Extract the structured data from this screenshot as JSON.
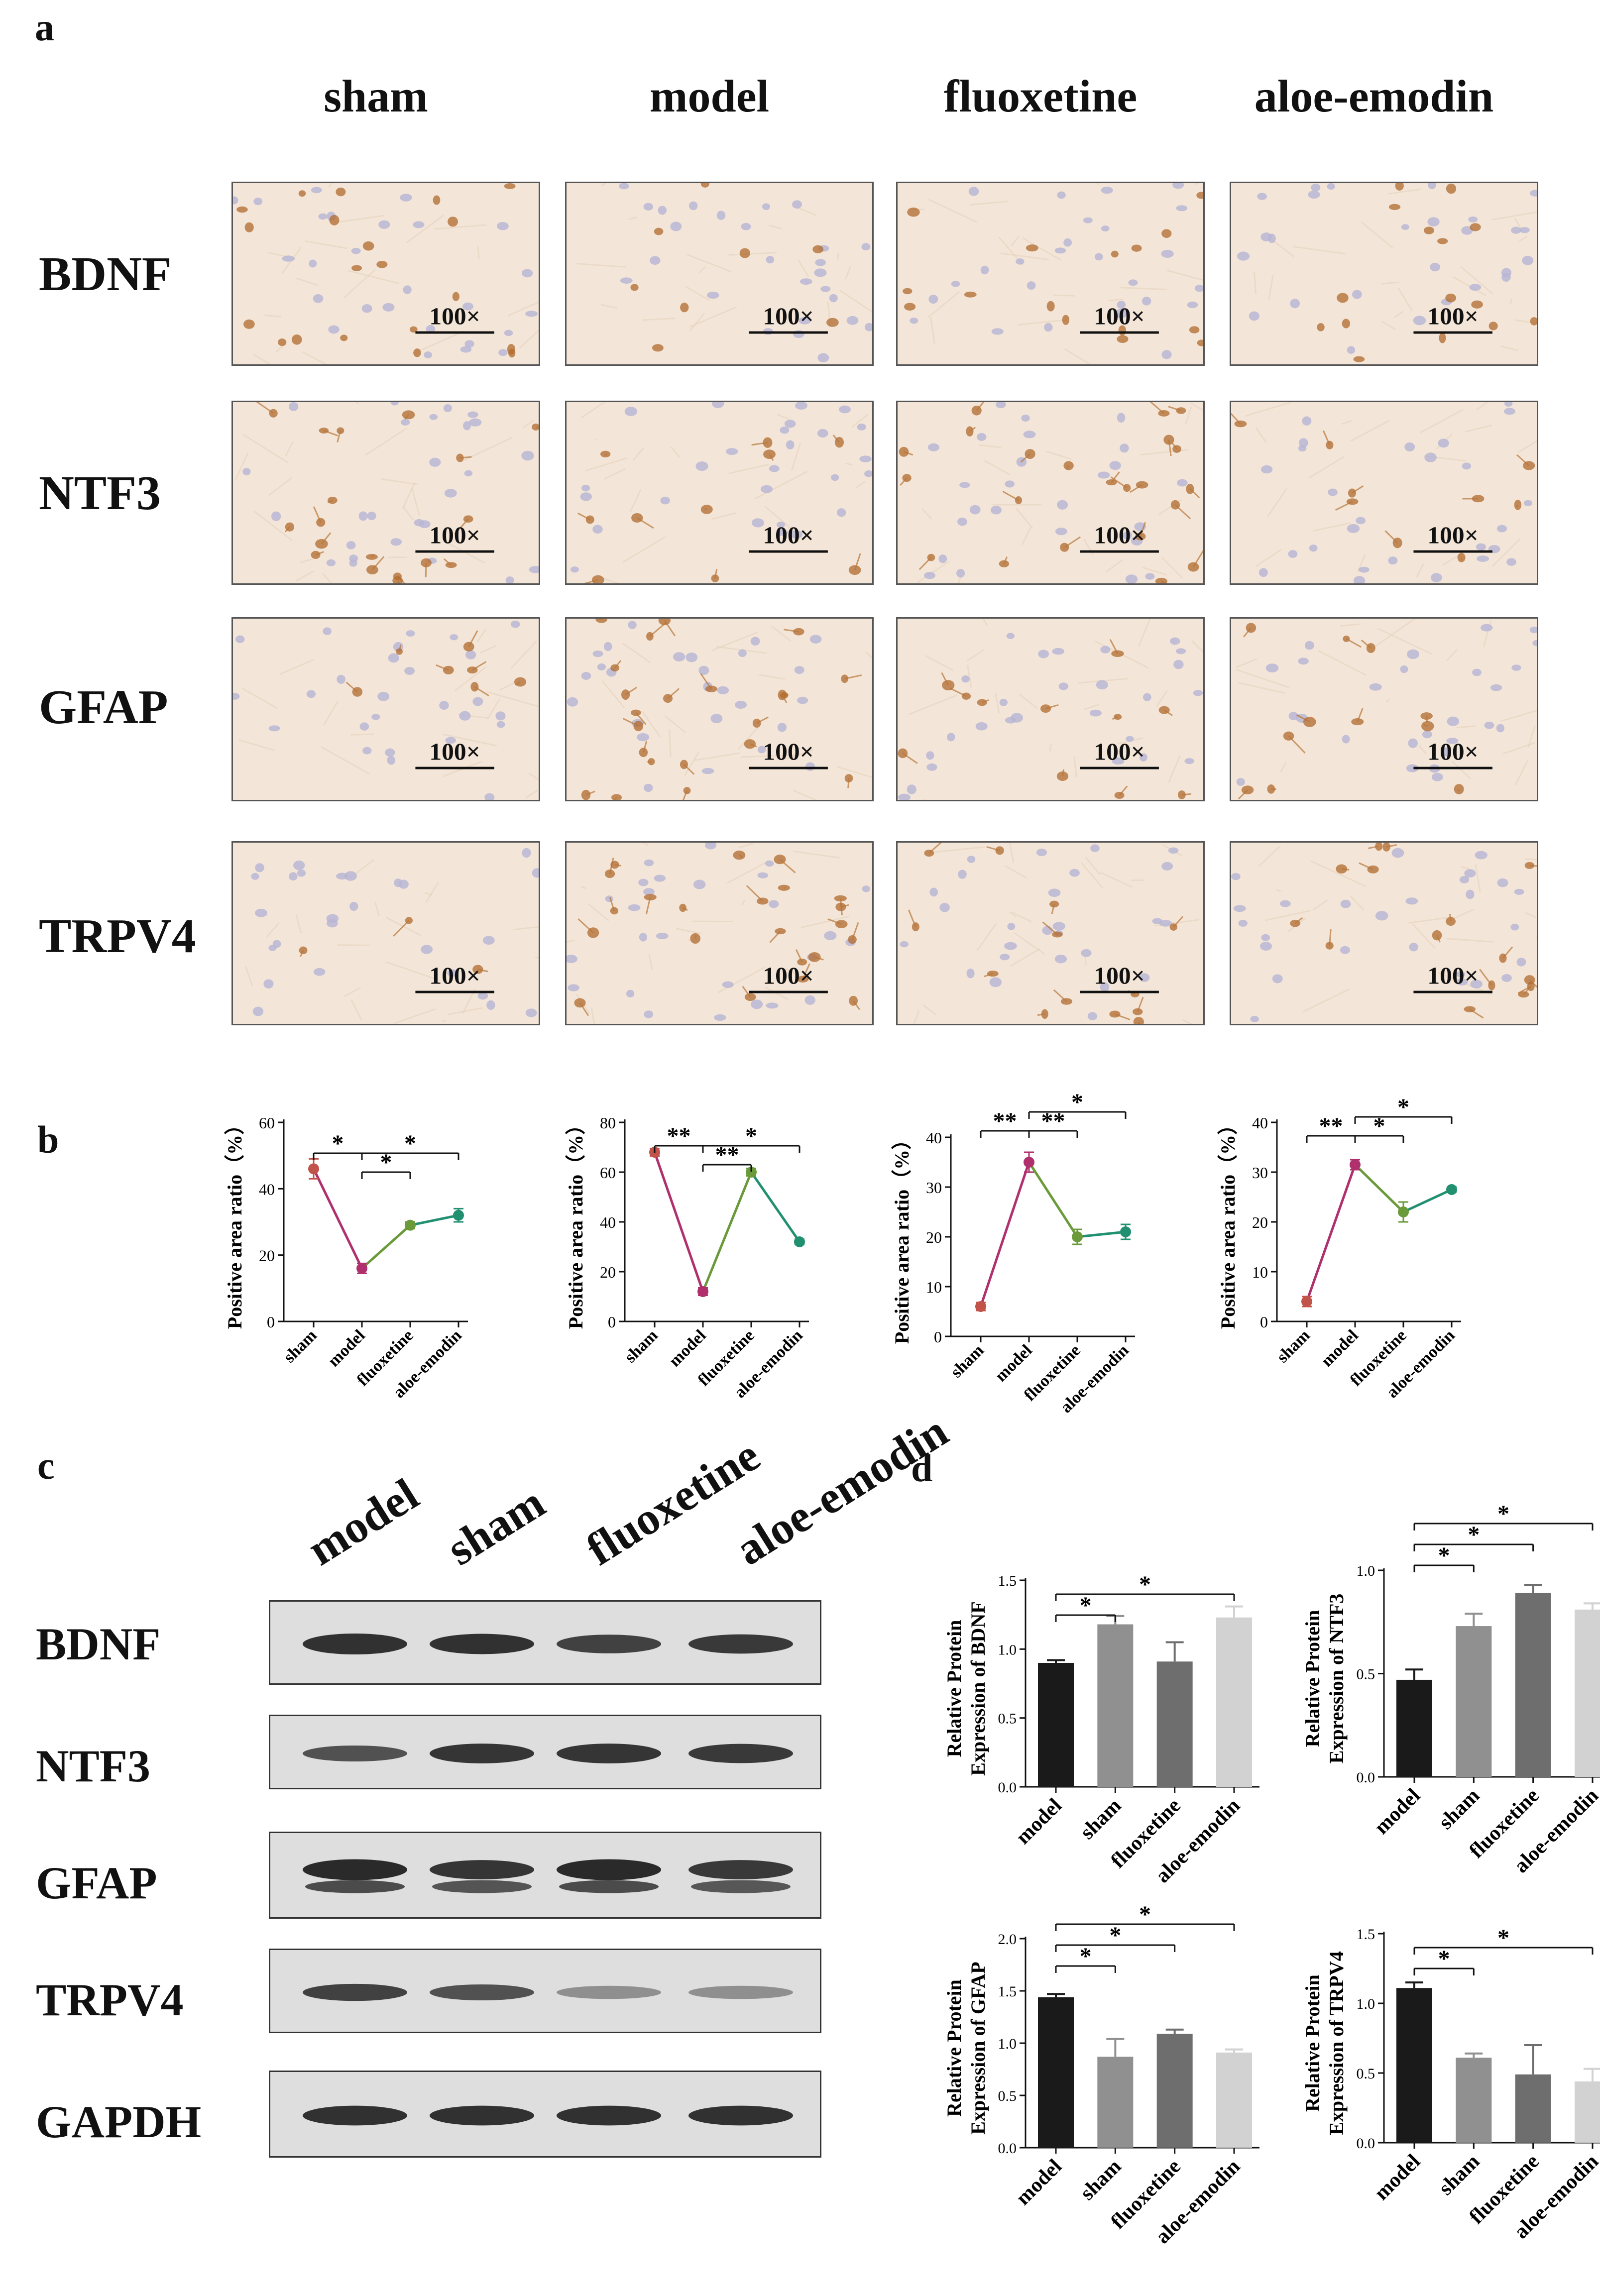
{
  "panels": {
    "a": "a",
    "b": "b",
    "c": "c",
    "d": "d"
  },
  "ihc": {
    "columns": [
      "sham",
      "model",
      "fluoxetine",
      "aloe-emodin"
    ],
    "rows": [
      "BDNF",
      "NTF3",
      "GFAP",
      "TRPV4"
    ],
    "magnification": "100×"
  },
  "chart_data": [
    {
      "type": "line",
      "panel": "b",
      "ylabel": "Positive area ratio（%）",
      "categories": [
        "sham",
        "model",
        "fluoxetine",
        "aloe-emodin"
      ],
      "values": [
        46,
        16,
        29,
        32
      ],
      "errors": [
        3,
        1.5,
        1,
        2
      ],
      "ylim": [
        0,
        60
      ],
      "yticks": [
        0,
        20,
        40,
        60
      ],
      "colors": [
        "#c2534a",
        "#b0306e",
        "#6a9a3a",
        "#219070"
      ],
      "sig": [
        {
          "from": 0,
          "to": 1,
          "label": "*",
          "level": 1
        },
        {
          "from": 1,
          "to": 2,
          "label": "*",
          "level": 0
        },
        {
          "from": 1,
          "to": 3,
          "label": "*",
          "level": 1
        }
      ]
    },
    {
      "type": "line",
      "panel": "b",
      "ylabel": "Positive area ratio（%）",
      "categories": [
        "sham",
        "model",
        "fluoxetine",
        "aloe-emodin"
      ],
      "values": [
        68,
        12,
        60,
        32
      ],
      "errors": [
        1.5,
        1.5,
        1.5,
        1
      ],
      "ylim": [
        0,
        80
      ],
      "yticks": [
        0,
        20,
        40,
        60,
        80
      ],
      "colors": [
        "#c2534a",
        "#b0306e",
        "#6a9a3a",
        "#219070"
      ],
      "sig": [
        {
          "from": 0,
          "to": 1,
          "label": "**",
          "level": 1
        },
        {
          "from": 1,
          "to": 2,
          "label": "**",
          "level": 0
        },
        {
          "from": 1,
          "to": 3,
          "label": "*",
          "level": 1
        }
      ]
    },
    {
      "type": "line",
      "panel": "b",
      "ylabel": "Positive area ratio（%）",
      "categories": [
        "sham",
        "model",
        "fluoxetine",
        "aloe-emodin"
      ],
      "values": [
        6,
        35,
        20,
        21
      ],
      "errors": [
        0.8,
        2,
        1.5,
        1.5
      ],
      "ylim": [
        0,
        40
      ],
      "yticks": [
        0,
        10,
        20,
        30,
        40
      ],
      "colors": [
        "#c2534a",
        "#b0306e",
        "#6a9a3a",
        "#219070"
      ],
      "sig": [
        {
          "from": 0,
          "to": 1,
          "label": "**",
          "level": 1
        },
        {
          "from": 1,
          "to": 2,
          "label": "**",
          "level": 1
        },
        {
          "from": 1,
          "to": 3,
          "label": "*",
          "level": 2
        }
      ]
    },
    {
      "type": "line",
      "panel": "b",
      "ylabel": "Positive area ratio（%）",
      "categories": [
        "sham",
        "model",
        "fluoxetine",
        "aloe-emodin"
      ],
      "values": [
        4,
        31.5,
        22,
        26.5
      ],
      "errors": [
        1,
        1,
        2,
        0.5
      ],
      "ylim": [
        0,
        40
      ],
      "yticks": [
        0,
        10,
        20,
        30,
        40
      ],
      "colors": [
        "#c2534a",
        "#b0306e",
        "#6a9a3a",
        "#219070"
      ],
      "sig": [
        {
          "from": 0,
          "to": 1,
          "label": "**",
          "level": 1
        },
        {
          "from": 1,
          "to": 2,
          "label": "*",
          "level": 1
        },
        {
          "from": 1,
          "to": 3,
          "label": "*",
          "level": 2
        }
      ]
    },
    {
      "type": "bar",
      "panel": "d",
      "ylabel": [
        "Relative Protein",
        "Expression of BDNF"
      ],
      "categories": [
        "model",
        "sham",
        "fluoxetine",
        "aloe-emodin"
      ],
      "values": [
        0.9,
        1.18,
        0.91,
        1.23
      ],
      "errors": [
        0.02,
        0.06,
        0.14,
        0.08
      ],
      "ylim": [
        0,
        1.5
      ],
      "yticks": [
        "0.0",
        "0.5",
        "1.0",
        "1.5"
      ],
      "colors": [
        "#1a1a1a",
        "#909090",
        "#6e6e6e",
        "#d2d2d2"
      ],
      "sig": [
        {
          "from": 0,
          "to": 1,
          "label": "*",
          "level": 0
        },
        {
          "from": 0,
          "to": 3,
          "label": "*",
          "level": 1
        }
      ]
    },
    {
      "type": "bar",
      "panel": "d",
      "ylabel": [
        "Relative Protein",
        "Expression of NTF3"
      ],
      "categories": [
        "model",
        "sham",
        "fluoxetine",
        "aloe-emodin"
      ],
      "values": [
        0.47,
        0.73,
        0.89,
        0.81
      ],
      "errors": [
        0.05,
        0.06,
        0.04,
        0.03
      ],
      "ylim": [
        0,
        1.0
      ],
      "yticks": [
        "0.0",
        "0.5",
        "1.0"
      ],
      "colors": [
        "#1a1a1a",
        "#909090",
        "#6e6e6e",
        "#d2d2d2"
      ],
      "sig": [
        {
          "from": 0,
          "to": 1,
          "label": "*",
          "level": 0
        },
        {
          "from": 0,
          "to": 2,
          "label": "*",
          "level": 1
        },
        {
          "from": 0,
          "to": 3,
          "label": "*",
          "level": 2
        }
      ]
    },
    {
      "type": "bar",
      "panel": "d",
      "ylabel": [
        "Relative Protein",
        "Expression of  GFAP"
      ],
      "categories": [
        "model",
        "sham",
        "fluoxetine",
        "aloe-emodin"
      ],
      "values": [
        1.44,
        0.87,
        1.09,
        0.91
      ],
      "errors": [
        0.03,
        0.17,
        0.04,
        0.03
      ],
      "ylim": [
        0,
        2.0
      ],
      "yticks": [
        "0.0",
        "0.5",
        "1.0",
        "1.5",
        "2.0"
      ],
      "colors": [
        "#1a1a1a",
        "#909090",
        "#6e6e6e",
        "#d2d2d2"
      ],
      "sig": [
        {
          "from": 0,
          "to": 1,
          "label": "*",
          "level": 0
        },
        {
          "from": 0,
          "to": 2,
          "label": "*",
          "level": 1
        },
        {
          "from": 0,
          "to": 3,
          "label": "*",
          "level": 2
        }
      ]
    },
    {
      "type": "bar",
      "panel": "d",
      "ylabel": [
        "Relative Protein",
        "Expression of TRPV4"
      ],
      "categories": [
        "model",
        "sham",
        "fluoxetine",
        "aloe-emodin"
      ],
      "values": [
        1.11,
        0.61,
        0.49,
        0.44
      ],
      "errors": [
        0.04,
        0.03,
        0.21,
        0.09
      ],
      "ylim": [
        0,
        1.5
      ],
      "yticks": [
        "0.0",
        "0.5",
        "1.0",
        "1.5"
      ],
      "colors": [
        "#1a1a1a",
        "#909090",
        "#6e6e6e",
        "#d2d2d2"
      ],
      "sig": [
        {
          "from": 0,
          "to": 1,
          "label": "*",
          "level": 0
        },
        {
          "from": 0,
          "to": 3,
          "label": "*",
          "level": 1
        }
      ]
    }
  ],
  "blot": {
    "lanes": [
      "model",
      "sham",
      "fluoxetine",
      "aloe-emodin"
    ],
    "proteins": [
      "BDNF",
      "NTF3",
      "GFAP",
      "TRPV4",
      "GAPDH"
    ]
  }
}
